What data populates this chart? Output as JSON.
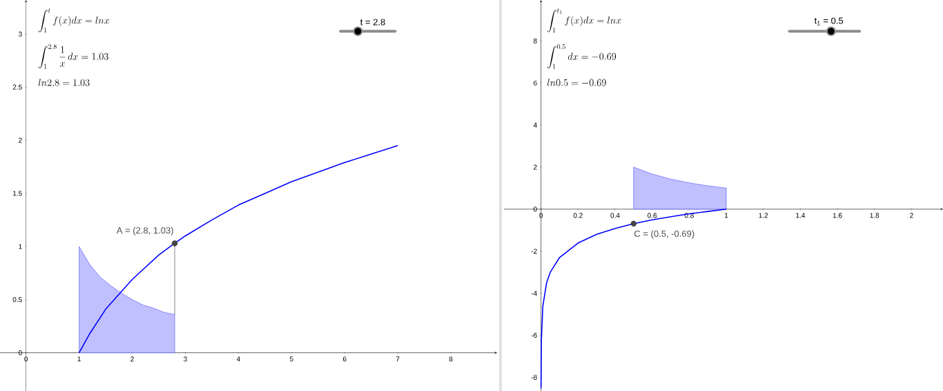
{
  "chart_data": [
    {
      "type": "line",
      "xlim": [
        -0.49,
        8.87
      ],
      "ylim": [
        -0.36,
        3.32
      ],
      "xticks": [
        0,
        1,
        2,
        3,
        4,
        5,
        6,
        7,
        8
      ],
      "yticks": [
        0,
        0.5,
        1,
        1.5,
        2,
        2.5,
        3
      ],
      "grid": false,
      "series": [
        {
          "type": "area",
          "color": "#c0c0ff",
          "x": [
            1,
            1.2,
            1.4,
            1.6,
            1.8,
            2,
            2.2,
            2.4,
            2.6,
            2.8
          ],
          "values": [
            1,
            0.83,
            0.71,
            0.63,
            0.56,
            0.5,
            0.45,
            0.42,
            0.38,
            0.36
          ]
        },
        {
          "color": "#0000ff",
          "x": [
            1,
            1.2,
            1.5,
            2,
            2.5,
            2.8,
            3,
            3.5,
            4,
            4.5,
            5,
            5.5,
            6,
            6.5,
            7
          ],
          "values": [
            0,
            0.18,
            0.41,
            0.69,
            0.92,
            1.03,
            1.1,
            1.25,
            1.39,
            1.5,
            1.61,
            1.7,
            1.79,
            1.87,
            1.95
          ]
        },
        {
          "color": "#555555",
          "x": [
            2.8,
            2.8
          ],
          "values": [
            0.36,
            1.03
          ]
        },
        {
          "type": "scatter",
          "color": "#444444",
          "marker": "circle",
          "x": [
            2.8
          ],
          "values": [
            1.03
          ]
        }
      ],
      "annotations": [
        "\\int_1^{t} f(x)dx = lnx",
        "\\int_1^{2.8} \\frac{1}{x}\\,dx = 1.03",
        "ln2.8 = 1.03",
        "t = 2.8",
        {
          "text": "A = (2.8, 1.03)",
          "x": 2.8,
          "y": 1.03
        }
      ]
    },
    {
      "type": "line",
      "xlim": [
        -0.2,
        2.17
      ],
      "ylim": [
        -8.65,
        9.95
      ],
      "xticks": [
        0,
        0.2,
        0.4,
        0.6,
        0.8,
        1,
        1.2,
        1.4,
        1.6,
        1.8,
        2
      ],
      "yticks": [
        -8,
        -6,
        -4,
        -2,
        0,
        2,
        4,
        6,
        8
      ],
      "grid": false,
      "series": [
        {
          "type": "area",
          "color": "#c0c0ff",
          "x": [
            0.5,
            0.6,
            0.7,
            0.8,
            0.9,
            1
          ],
          "values": [
            2,
            1.67,
            1.43,
            1.25,
            1.11,
            1
          ]
        },
        {
          "color": "#0000ff",
          "x": [
            0.0002,
            0.002,
            0.01,
            0.03,
            0.05,
            0.1,
            0.2,
            0.3,
            0.4,
            0.5,
            0.6,
            0.7,
            0.8,
            0.9,
            1
          ],
          "values": [
            -8.52,
            -6.21,
            -4.61,
            -3.51,
            -3.0,
            -2.3,
            -1.61,
            -1.2,
            -0.92,
            -0.69,
            -0.51,
            -0.36,
            -0.22,
            -0.11,
            0
          ]
        },
        {
          "type": "scatter",
          "color": "#444444",
          "marker": "circle",
          "x": [
            0.5
          ],
          "values": [
            -0.69
          ]
        }
      ],
      "annotations": [
        "\\int_1^{t_1} f(x)dx = lnx",
        "\\int_1^{0.5} dx = -0.69",
        "ln0.5 = -0.69",
        "t$_{1}$ = 0.5",
        {
          "text": "C = (0.5, -0.69)",
          "x": 0.5,
          "y": -0.69
        }
      ]
    }
  ]
}
